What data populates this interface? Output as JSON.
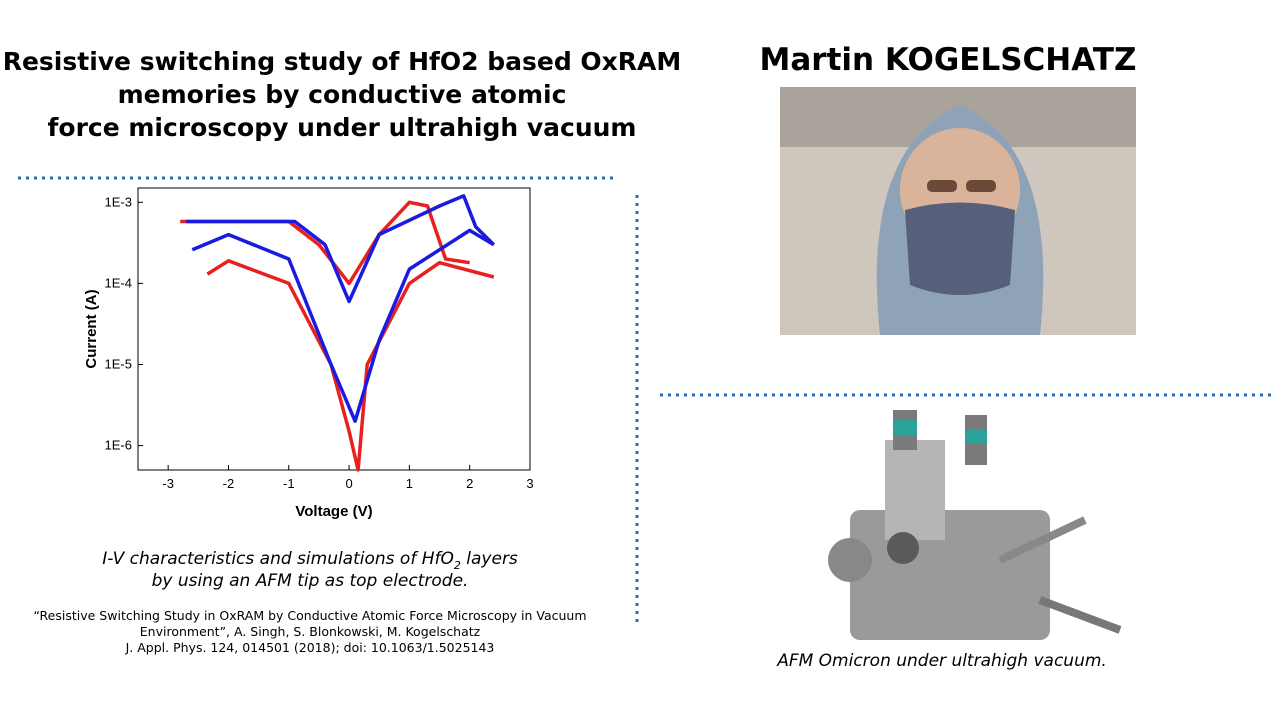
{
  "title_lines": [
    "Resistive switching study of HfO2 based OxRAM",
    "memories by conductive atomic",
    "force microscopy under ultrahigh vacuum"
  ],
  "author": "Martin KOGELSCHATZ",
  "figure": {
    "type": "line",
    "y_log": true,
    "x_label": "Voltage (V)",
    "y_label": "Current (A)",
    "xlim": [
      -3.5,
      3
    ],
    "xticks": [
      -3,
      -2,
      -1,
      0,
      1,
      2,
      3
    ],
    "ylim": [
      5e-07,
      0.0015
    ],
    "yticks": [
      {
        "value": 1e-06,
        "label": "1E-6"
      },
      {
        "value": 1e-05,
        "label": "1E-5"
      },
      {
        "value": 0.0001,
        "label": "1E-4"
      },
      {
        "value": 0.001,
        "label": "1E-3"
      }
    ],
    "series": [
      {
        "color": "#e8201f",
        "x": [
          -2.8,
          -1,
          -0.5,
          0,
          0.5,
          1,
          1.3,
          1.6,
          2
        ],
        "values": [
          0.00058,
          0.00058,
          0.0003,
          0.0001,
          0.0004,
          0.001,
          0.0009,
          0.0002,
          0.00018
        ]
      },
      {
        "color": "#e8201f",
        "x": [
          -2.35,
          -2,
          -1,
          -0.3,
          0,
          0.15,
          0.3,
          1,
          1.5,
          2.4
        ],
        "values": [
          0.00013,
          0.00019,
          0.0001,
          1e-05,
          1.5e-06,
          5e-07,
          1e-05,
          0.0001,
          0.00018,
          0.00012
        ]
      },
      {
        "color": "#1a1ae0",
        "x": [
          -2.7,
          -0.9,
          -0.4,
          0,
          0.5,
          1.5,
          1.9,
          2.1,
          2.4
        ],
        "values": [
          0.00058,
          0.00058,
          0.0003,
          6e-05,
          0.0004,
          0.0009,
          0.0012,
          0.0005,
          0.0003
        ]
      },
      {
        "color": "#1a1ae0",
        "x": [
          -2.6,
          -2,
          -1,
          -0.3,
          0.1,
          0.5,
          1,
          2,
          2.4
        ],
        "values": [
          0.00026,
          0.0004,
          0.0002,
          1e-05,
          2e-06,
          2e-05,
          0.00015,
          0.00045,
          0.0003
        ]
      }
    ]
  },
  "figure_caption": {
    "line1_main": "I-V characteristics and simulations of HfO",
    "line1_sub": "2",
    "line1_end": " layers",
    "line2": "by using an AFM tip as top electrode."
  },
  "reference": [
    "“Resistive Switching Study in OxRAM by Conductive Atomic Force Microscopy in Vacuum",
    "Environment”, A. Singh, S. Blonkowski, M. Kogelschatz",
    "J. Appl. Phys. 124, 014501 (2018); doi: 10.1063/1.5025143"
  ],
  "photo_caption": "AFM Omicron under ultrahigh vacuum."
}
